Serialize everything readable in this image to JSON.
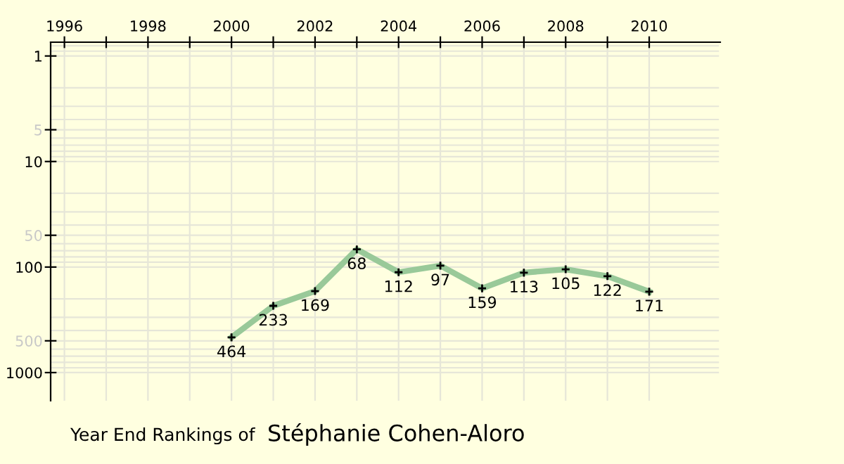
{
  "chart_data": {
    "type": "line",
    "title": "Year End Rankings of",
    "subtitle": "Stéphanie Cohen-Aloro",
    "x": [
      2000,
      2001,
      2002,
      2003,
      2004,
      2005,
      2006,
      2007,
      2008,
      2009,
      2010
    ],
    "series": [
      {
        "color": "#99c999",
        "values": [
          464,
          233,
          169,
          68,
          112,
          97,
          159,
          113,
          105,
          122,
          171
        ]
      }
    ],
    "log": "y",
    "xlim": [
      1995.67,
      2011.7
    ],
    "ylim": [
      1848,
      0.74
    ],
    "xticks": [
      1996,
      {
        "value": 1997,
        "label": null
      },
      1998,
      {
        "value": 1999,
        "label": null
      },
      2000,
      {
        "value": 2001,
        "label": null
      },
      2002,
      {
        "value": 2003,
        "label": null
      },
      2004,
      {
        "value": 2005,
        "label": null
      },
      2006,
      {
        "value": 2007,
        "label": null
      },
      2008,
      {
        "value": 2009,
        "label": null
      },
      2010
    ],
    "yticks": [
      1,
      5,
      10,
      50,
      100,
      500,
      1000
    ],
    "grid": true,
    "marker": "cross",
    "line_style": "solid",
    "data_labels": true
  }
}
